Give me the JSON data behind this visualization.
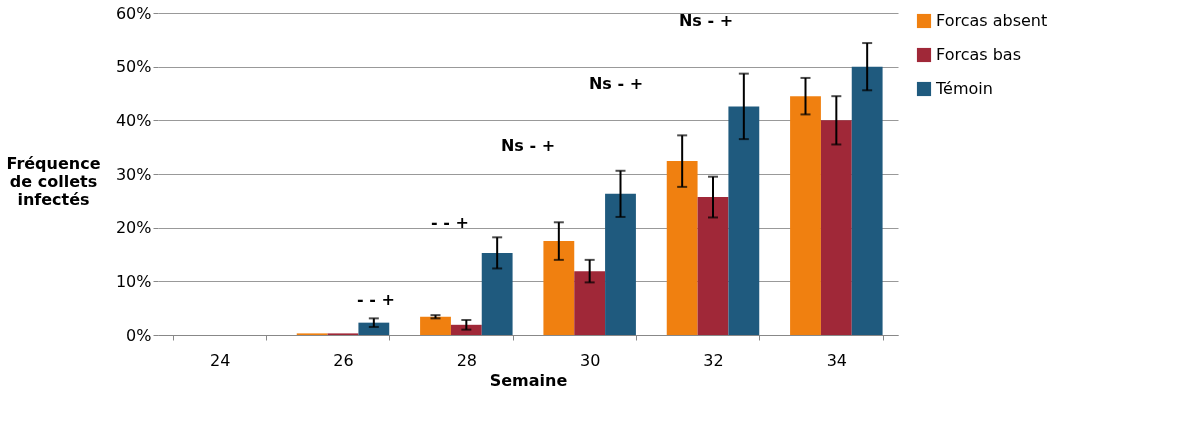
{
  "chart_data": {
    "type": "bar",
    "xlabel": "Semaine",
    "ylabel": "Fréquence de collets infectés",
    "categories": [
      "24",
      "26",
      "28",
      "30",
      "32",
      "34"
    ],
    "series": [
      {
        "name": "Forcas absent",
        "color": "#f08010",
        "values": [
          0,
          0.3,
          3.4,
          17.5,
          32.4,
          44.5
        ],
        "errors": [
          null,
          null,
          0.3,
          3.5,
          4.8,
          3.4
        ]
      },
      {
        "name": "Forcas bas",
        "color": "#a02838",
        "values": [
          0,
          0.3,
          1.9,
          11.9,
          25.7,
          40.0
        ],
        "errors": [
          null,
          null,
          0.9,
          2.1,
          3.8,
          4.5
        ]
      },
      {
        "name": "Témoin",
        "color": "#1f5a7e",
        "values": [
          0,
          2.3,
          15.3,
          26.3,
          42.6,
          50.0
        ],
        "errors": [
          null,
          0.8,
          2.9,
          4.3,
          6.1,
          4.4
        ]
      }
    ],
    "ylim": [
      0,
      60
    ],
    "yticks": [
      {
        "value": 0,
        "label": "0%"
      },
      {
        "value": 10,
        "label": "10%"
      },
      {
        "value": 20,
        "label": "20%"
      },
      {
        "value": 30,
        "label": "30%"
      },
      {
        "value": 40,
        "label": "40%"
      },
      {
        "value": 50,
        "label": "50%"
      },
      {
        "value": 60,
        "label": "60%"
      }
    ],
    "grid": "y",
    "legend": "right",
    "annotations": [
      "-  -  +",
      "-  -  +",
      "Ns  -  +",
      "Ns  -  +",
      "Ns  -  +"
    ]
  }
}
